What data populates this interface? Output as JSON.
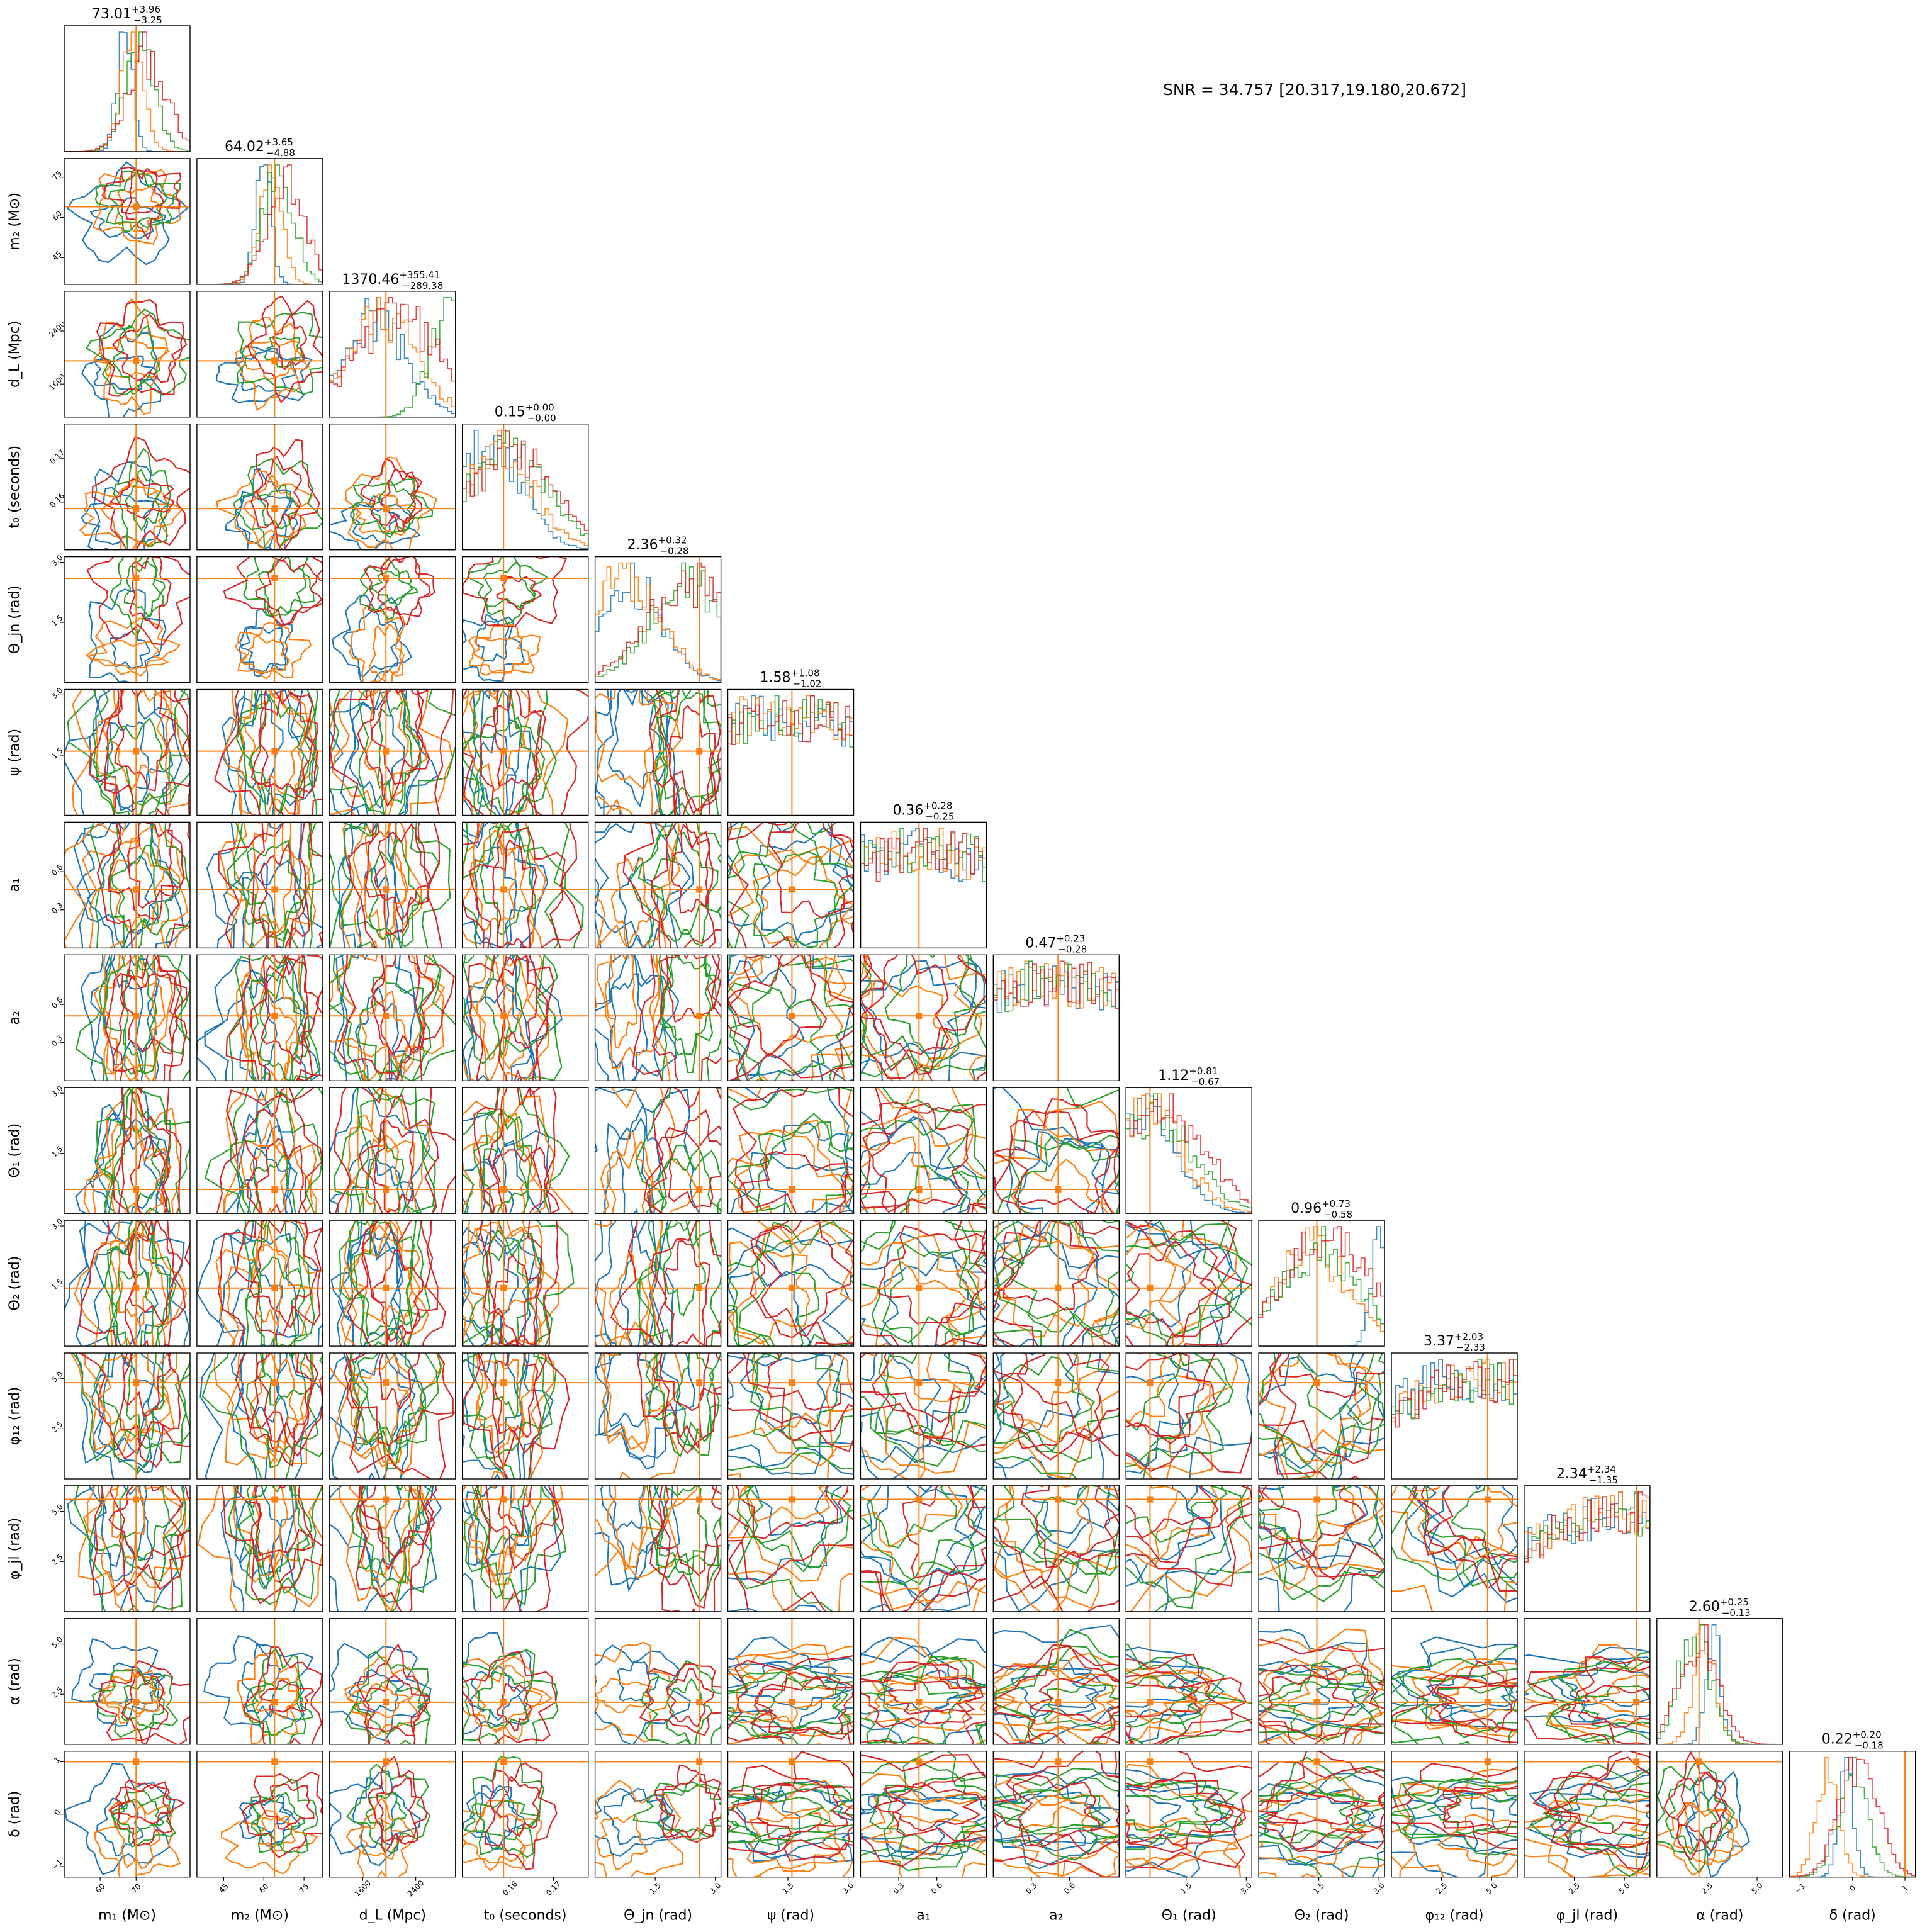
{
  "chart_data": {
    "type": "corner",
    "annotation": "SNR = 34.757 [20.317,19.180,20.672]",
    "series_colors": [
      "#1f77b4",
      "#ff7f0e",
      "#2ca02c",
      "#d62728"
    ],
    "truth_color": "#ff7f0e",
    "params": [
      {
        "label": "m₁ (M⊙)",
        "range": [
          50,
          85
        ],
        "truth": 70,
        "ticks": [
          "60",
          "70"
        ],
        "tick_values": [
          60,
          70
        ],
        "summary": {
          "median": "73.01",
          "plus": "+3.96",
          "minus": "−3.25"
        }
      },
      {
        "label": "m₂ (M⊙)",
        "range": [
          35,
          82
        ],
        "truth": 64,
        "ticks": [
          "45",
          "60",
          "75"
        ],
        "tick_values": [
          45,
          60,
          75
        ],
        "summary": {
          "median": "64.02",
          "plus": "+3.65",
          "minus": "−4.88"
        }
      },
      {
        "label": "d_L (Mpc)",
        "range": [
          1100,
          3000
        ],
        "truth": 1950,
        "ticks": [
          "1600",
          "2400"
        ],
        "tick_values": [
          1600,
          2400
        ],
        "summary": {
          "median": "1370.46",
          "plus": "+355.41",
          "minus": "−289.38"
        }
      },
      {
        "label": "t₀ (seconds)",
        "range": [
          0.149,
          0.178
        ],
        "truth": 0.1585,
        "ticks": [
          "0.16",
          "0.17"
        ],
        "tick_values": [
          0.16,
          0.17
        ],
        "summary": {
          "median": "0.15",
          "plus": "+0.00",
          "minus": "−0.00"
        }
      },
      {
        "label": "Θ_jn (rad)",
        "range": [
          0,
          3.14
        ],
        "truth": 2.6,
        "ticks": [
          "1.5",
          "3.0"
        ],
        "tick_values": [
          1.5,
          3.0
        ],
        "summary": {
          "median": "2.36",
          "plus": "+0.32",
          "minus": "−0.28"
        }
      },
      {
        "label": "ψ (rad)",
        "range": [
          0,
          3.14
        ],
        "truth": 1.6,
        "ticks": [
          "1.5",
          "3.0"
        ],
        "tick_values": [
          1.5,
          3.0
        ],
        "summary": {
          "median": "1.58",
          "plus": "+1.08",
          "minus": "−1.02"
        }
      },
      {
        "label": "a₁",
        "range": [
          0,
          0.99
        ],
        "truth": 0.46,
        "ticks": [
          "0.3",
          "0.6"
        ],
        "tick_values": [
          0.3,
          0.6
        ],
        "summary": {
          "median": "0.36",
          "plus": "+0.28",
          "minus": "−0.25"
        }
      },
      {
        "label": "a₂",
        "range": [
          0,
          0.99
        ],
        "truth": 0.51,
        "ticks": [
          "0.3",
          "0.6"
        ],
        "tick_values": [
          0.3,
          0.6
        ],
        "summary": {
          "median": "0.47",
          "plus": "+0.23",
          "minus": "−0.28"
        }
      },
      {
        "label": "Θ₁ (rad)",
        "range": [
          0,
          3.14
        ],
        "truth": 0.6,
        "ticks": [
          "1.5",
          "3.0"
        ],
        "tick_values": [
          1.5,
          3.0
        ],
        "summary": {
          "median": "1.12",
          "plus": "+0.81",
          "minus": "−0.67"
        }
      },
      {
        "label": "Θ₂ (rad)",
        "range": [
          0,
          3.14
        ],
        "truth": 1.45,
        "ticks": [
          "1.5",
          "3.0"
        ],
        "tick_values": [
          1.5,
          3.0
        ],
        "summary": {
          "median": "0.96",
          "plus": "+0.73",
          "minus": "−0.58"
        }
      },
      {
        "label": "φ₁₂ (rad)",
        "range": [
          0,
          6.28
        ],
        "truth": 4.8,
        "ticks": [
          "2.5",
          "5.0"
        ],
        "tick_values": [
          2.5,
          5.0
        ],
        "summary": {
          "median": "3.37",
          "plus": "+2.03",
          "minus": "−2.33"
        }
      },
      {
        "label": "φ_jl (rad)",
        "range": [
          0,
          6.28
        ],
        "truth": 5.6,
        "ticks": [
          "2.5",
          "5.0"
        ],
        "tick_values": [
          2.5,
          5.0
        ],
        "summary": {
          "median": "2.34",
          "plus": "+2.34",
          "minus": "−1.35"
        }
      },
      {
        "label": "α (rad)",
        "range": [
          0,
          6.28
        ],
        "truth": 2.1,
        "ticks": [
          "2.5",
          "5.0"
        ],
        "tick_values": [
          2.5,
          5.0
        ],
        "summary": {
          "median": "2.60",
          "plus": "+0.25",
          "minus": "−0.13"
        }
      },
      {
        "label": "δ (rad)",
        "range": [
          -1.2,
          1.2
        ],
        "truth": 1.0,
        "ticks": [
          "−1",
          "0",
          "1"
        ],
        "tick_values": [
          -1,
          0,
          1
        ],
        "summary": {
          "median": "0.22",
          "plus": "+0.20",
          "minus": "−0.18"
        }
      }
    ]
  }
}
